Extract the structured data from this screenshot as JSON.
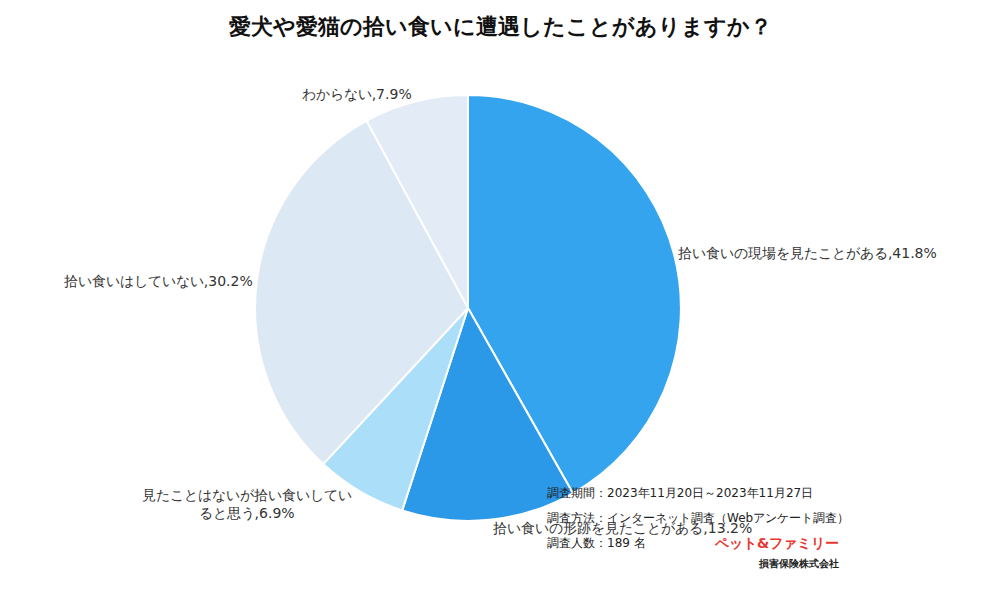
{
  "chart_data": {
    "type": "pie",
    "title": "愛犬や愛猫の拾い食いに遭遇したことがありますか？",
    "categories": [
      "拾い食いの現場を見たことがある",
      "拾い食いの形跡を見たことがある",
      "見たことはないが拾い食いしていると思う",
      "拾い食いはしていない",
      "わからない"
    ],
    "values": [
      41.8,
      13.2,
      6.9,
      30.2,
      7.9
    ],
    "value_labels": [
      "拾い食いの現場を見たことがある,41.8%",
      "拾い食いの形跡を見たことがある,13.2%",
      "見たことはないが拾い食いしていると思う,6.9%",
      "拾い食いはしていない,30.2%",
      "わからない,7.9%"
    ],
    "colors": [
      "#35a4ee",
      "#2c98e8",
      "#aadef9",
      "#dde8f5",
      "#e2ebf6"
    ],
    "data_labels": true,
    "notes": [
      "調査期間：2023年11月20日～2023年11月27日",
      "調査方法：インターネット調査（Webアンケート調査）",
      "調査人数：189 名"
    ],
    "source": [
      "ペット&ファミリー",
      "損害保険株式会社"
    ]
  }
}
